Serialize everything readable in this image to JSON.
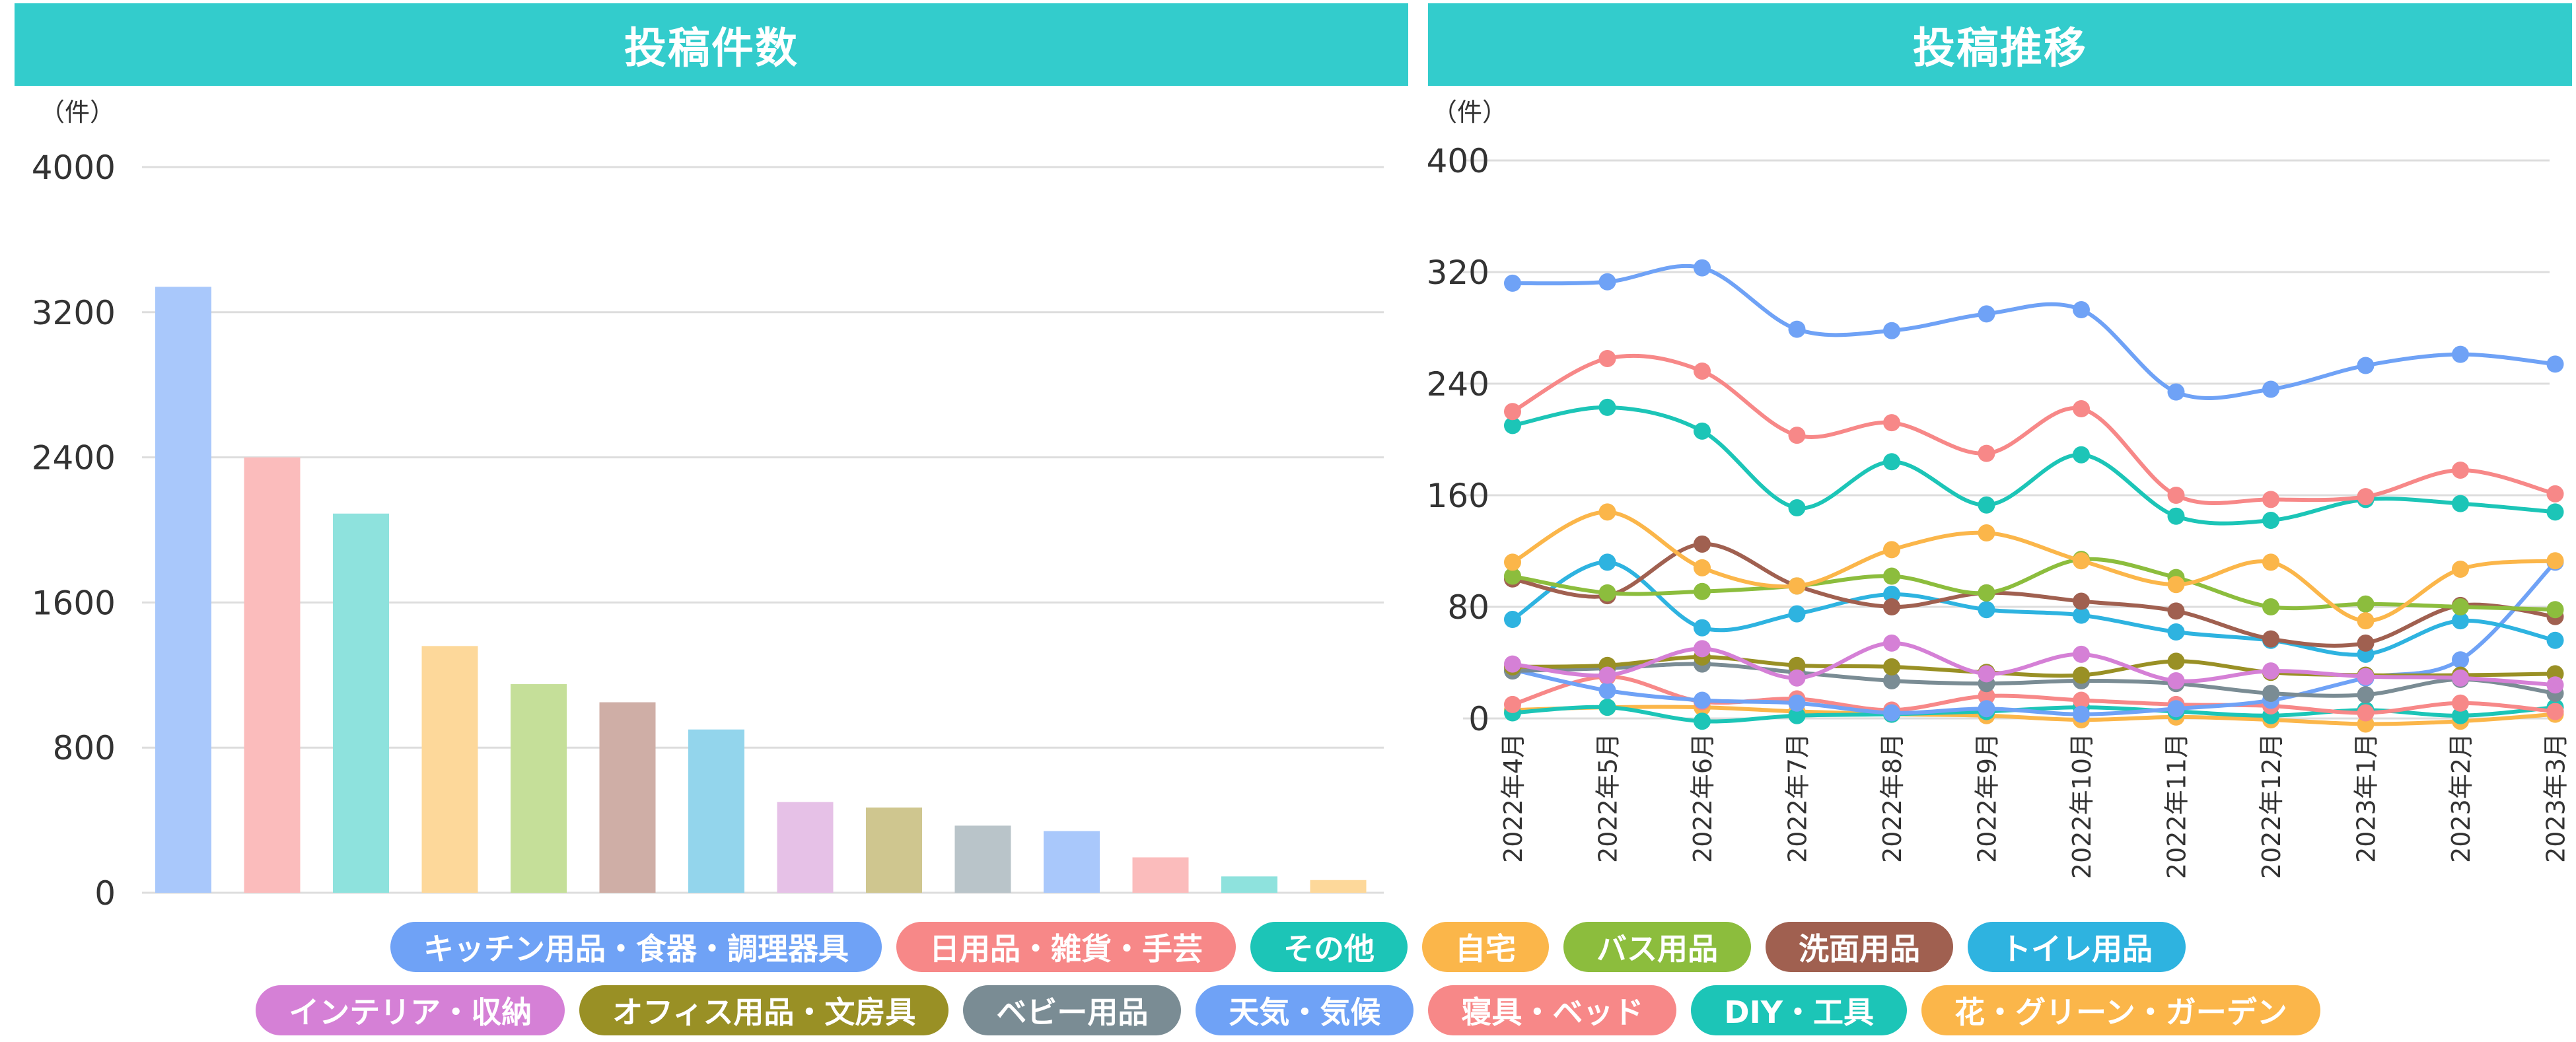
{
  "header": {
    "left_title": "投稿件数",
    "right_title": "投稿推移"
  },
  "colors": {
    "header_bg": "#33cccc",
    "grid": "#dddddd",
    "text": "#333333"
  },
  "chart_data": [
    {
      "type": "bar",
      "title": "投稿件数",
      "ylabel": "（件）",
      "ylim": [
        0,
        4000
      ],
      "yticks": [
        0,
        800,
        1600,
        2400,
        3200,
        4000
      ],
      "categories": [
        "キッチン用品・食器・調理器具",
        "日用品・雑貨・手芸",
        "その他",
        "自宅",
        "バス用品",
        "洗面用品",
        "トイレ用品",
        "インテリア・収納",
        "オフィス用品・文房具",
        "ベビー用品",
        "天気・気候",
        "寝具・ベッド",
        "DIY・工具",
        "花・グリーン・ガーデン"
      ],
      "values": [
        3340,
        2400,
        2090,
        1360,
        1150,
        1050,
        900,
        500,
        470,
        370,
        340,
        195,
        90,
        70
      ],
      "colors": [
        "#a9c8fb",
        "#fbbcbc",
        "#8ee2dd",
        "#fdd89a",
        "#c5df99",
        "#cfaea6",
        "#93d5ec",
        "#e6c1e7",
        "#cfc68f",
        "#b9c4c9",
        "#a9c8fb",
        "#fbbcbc",
        "#8ee2dd",
        "#fdd89a"
      ]
    },
    {
      "type": "line",
      "title": "投稿推移",
      "ylabel": "（件）",
      "ylim": [
        0,
        400
      ],
      "yticks": [
        0,
        80,
        160,
        240,
        320,
        400
      ],
      "x": [
        "2022年4月",
        "2022年5月",
        "2022年6月",
        "2022年7月",
        "2022年8月",
        "2022年9月",
        "2022年10月",
        "2022年11月",
        "2022年12月",
        "2023年1月",
        "2023年2月",
        "2023年3月"
      ],
      "series": [
        {
          "name": "キッチン用品・食器・調理器具",
          "color": "#6fa2f6",
          "values": [
            312,
            313,
            323,
            279,
            278,
            290,
            293,
            234,
            236,
            253,
            261,
            254
          ]
        },
        {
          "name": "日用品・雑貨・手芸",
          "color": "#f78888",
          "values": [
            220,
            258,
            249,
            203,
            212,
            190,
            222,
            160,
            157,
            159,
            178,
            161
          ]
        },
        {
          "name": "その他",
          "color": "#1cc5b7",
          "values": [
            210,
            223,
            206,
            151,
            184,
            153,
            189,
            145,
            142,
            157,
            154,
            148
          ]
        },
        {
          "name": "自宅",
          "color": "#fbb64a",
          "values": [
            112,
            148,
            108,
            95,
            121,
            133,
            113,
            96,
            112,
            70,
            107,
            113
          ]
        },
        {
          "name": "バス用品",
          "color": "#8cbd3d",
          "values": [
            102,
            90,
            91,
            95,
            102,
            90,
            114,
            101,
            80,
            82,
            80,
            78
          ]
        },
        {
          "name": "洗面用品",
          "color": "#a06050",
          "values": [
            100,
            88,
            125,
            95,
            80,
            90,
            84,
            77,
            57,
            54,
            81,
            73
          ]
        },
        {
          "name": "トイレ用品",
          "color": "#2eb3e0",
          "values": [
            71,
            112,
            65,
            75,
            89,
            78,
            74,
            62,
            56,
            46,
            70,
            56
          ]
        },
        {
          "name": "インテリア・収納",
          "color": "#d580d6",
          "values": [
            39,
            31,
            50,
            29,
            54,
            32,
            46,
            27,
            34,
            30,
            29,
            24
          ]
        },
        {
          "name": "オフィス用品・文房具",
          "color": "#999025",
          "values": [
            37,
            38,
            44,
            38,
            37,
            33,
            31,
            41,
            33,
            31,
            31,
            32
          ]
        },
        {
          "name": "ベビー用品",
          "color": "#7a8c94",
          "values": [
            34,
            36,
            39,
            33,
            27,
            25,
            27,
            25,
            18,
            17,
            28,
            18
          ]
        },
        {
          "name": "天気・気候",
          "color": "#6fa2f6",
          "values": [
            35,
            20,
            13,
            11,
            4,
            7,
            3,
            7,
            13,
            29,
            42,
            112
          ]
        },
        {
          "name": "寝具・ベッド",
          "color": "#f78888",
          "values": [
            10,
            30,
            12,
            14,
            6,
            16,
            13,
            10,
            9,
            4,
            11,
            5
          ]
        },
        {
          "name": "DIY・工具",
          "color": "#1cc5b7",
          "values": [
            4,
            8,
            -2,
            2,
            3,
            5,
            8,
            5,
            2,
            6,
            2,
            8
          ]
        },
        {
          "name": "花・グリーン・ガーデン",
          "color": "#fbb64a",
          "values": [
            6,
            8,
            8,
            5,
            3,
            2,
            -1,
            1,
            -1,
            -4,
            -2,
            3
          ]
        }
      ]
    }
  ],
  "legend": {
    "row1": [
      {
        "label": "キッチン用品・食器・調理器具",
        "color": "#6fa2f6"
      },
      {
        "label": "日用品・雑貨・手芸",
        "color": "#f78888"
      },
      {
        "label": "その他",
        "color": "#1cc5b7"
      },
      {
        "label": "自宅",
        "color": "#fbb64a"
      },
      {
        "label": "バス用品",
        "color": "#8cbd3d"
      },
      {
        "label": "洗面用品",
        "color": "#a06050"
      },
      {
        "label": "トイレ用品",
        "color": "#2eb3e0"
      }
    ],
    "row2": [
      {
        "label": "インテリア・収納",
        "color": "#d580d6"
      },
      {
        "label": "オフィス用品・文房具",
        "color": "#999025"
      },
      {
        "label": "ベビー用品",
        "color": "#7a8c94"
      },
      {
        "label": "天気・気候",
        "color": "#6fa2f6"
      },
      {
        "label": "寝具・ベッド",
        "color": "#f78888"
      },
      {
        "label": "DIY・工具",
        "color": "#1cc5b7"
      },
      {
        "label": "花・グリーン・ガーデン",
        "color": "#fbb64a"
      }
    ]
  }
}
